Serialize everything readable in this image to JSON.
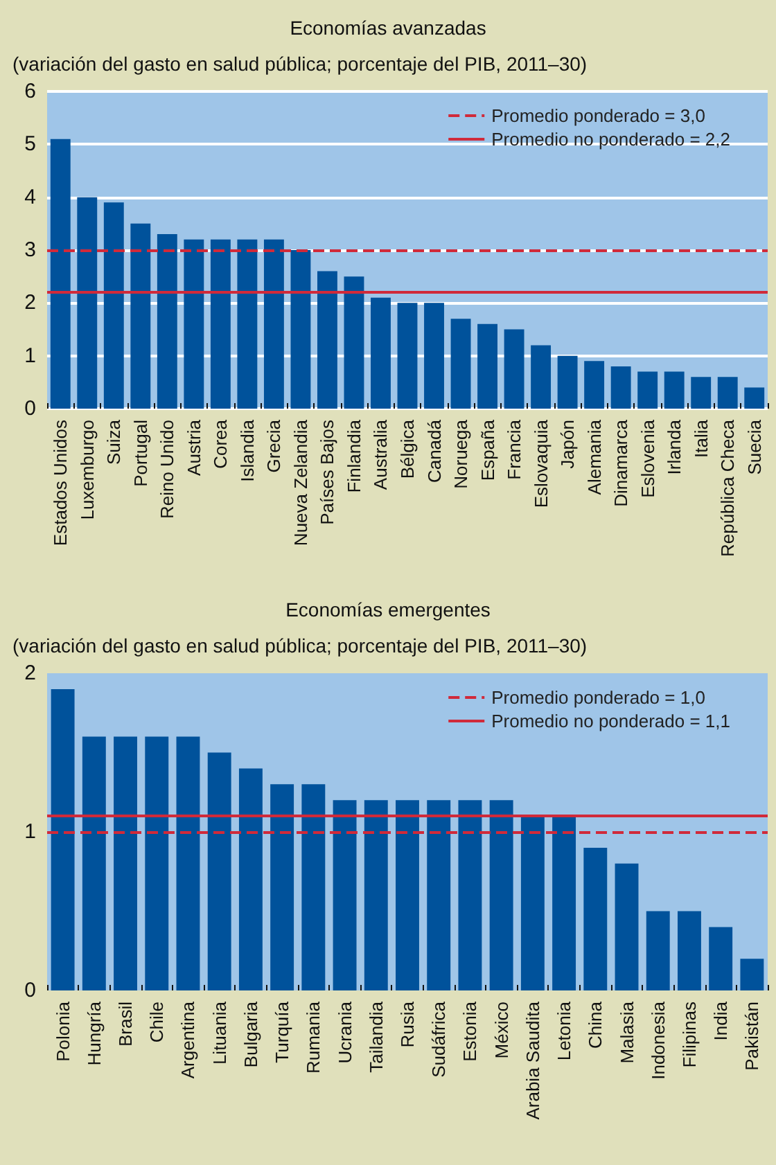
{
  "chart_data": [
    {
      "type": "bar",
      "title": "Economías avanzadas",
      "subtitle": "(variación del gasto en salud pública; porcentaje del PIB, 2011–30)",
      "categories": [
        "Estados Unidos",
        "Luxemburgo",
        "Suiza",
        "Portugal",
        "Reino Unido",
        "Austria",
        "Corea",
        "Islandia",
        "Grecia",
        "Nueva Zelandia",
        "Países Bajos",
        "Finlandia",
        "Australia",
        "Bélgica",
        "Canadá",
        "Noruega",
        "España",
        "Francia",
        "Eslovaquia",
        "Japón",
        "Alemania",
        "Dinamarca",
        "Eslovenia",
        "Irlanda",
        "Italia",
        "República Checa",
        "Suecia"
      ],
      "values": [
        5.1,
        4.0,
        3.9,
        3.5,
        3.3,
        3.2,
        3.2,
        3.2,
        3.2,
        3.0,
        2.6,
        2.5,
        2.1,
        2.0,
        2.0,
        1.7,
        1.6,
        1.5,
        1.2,
        1.0,
        0.9,
        0.8,
        0.7,
        0.7,
        0.6,
        0.6,
        0.4
      ],
      "color": "#00529b",
      "ylim": [
        0,
        6
      ],
      "yticks": [
        0,
        1,
        2,
        3,
        4,
        5,
        6
      ],
      "grid": "y",
      "legend": "top right",
      "ref_lines": [
        {
          "axis": "y",
          "value": 3.0,
          "label": "Promedio ponderado = 3,0",
          "color": "#d02a3a",
          "line_style": "dashed"
        },
        {
          "axis": "y",
          "value": 2.2,
          "label": "Promedio no ponderado = 2,2",
          "color": "#d02a3a",
          "line_style": "solid"
        }
      ]
    },
    {
      "type": "bar",
      "title": "Economías emergentes",
      "subtitle": "(variación del gasto en salud pública; porcentaje del PIB, 2011–30)",
      "categories": [
        "Polonia",
        "Hungría",
        "Brasil",
        "Chile",
        "Argentina",
        "Lituania",
        "Bulgaria",
        "Turquía",
        "Rumania",
        "Ucrania",
        "Tailandia",
        "Rusia",
        "Sudáfrica",
        "Estonia",
        "México",
        "Arabia Saudita",
        "Letonia",
        "China",
        "Malasia",
        "Indonesia",
        "Filipinas",
        "India",
        "Pakistán"
      ],
      "values": [
        1.9,
        1.6,
        1.6,
        1.6,
        1.6,
        1.5,
        1.4,
        1.3,
        1.3,
        1.2,
        1.2,
        1.2,
        1.2,
        1.2,
        1.2,
        1.1,
        1.1,
        0.9,
        0.8,
        0.5,
        0.5,
        0.4,
        0.2
      ],
      "color": "#00529b",
      "ylim": [
        0,
        2
      ],
      "yticks": [
        0,
        1,
        2
      ],
      "legend": "top right",
      "ref_lines": [
        {
          "axis": "y",
          "value": 1.0,
          "label": "Promedio ponderado = 1,0",
          "color": "#d02a3a",
          "line_style": "dashed"
        },
        {
          "axis": "y",
          "value": 1.1,
          "label": "Promedio no ponderado = 1,1",
          "color": "#d02a3a",
          "line_style": "solid"
        }
      ]
    }
  ]
}
